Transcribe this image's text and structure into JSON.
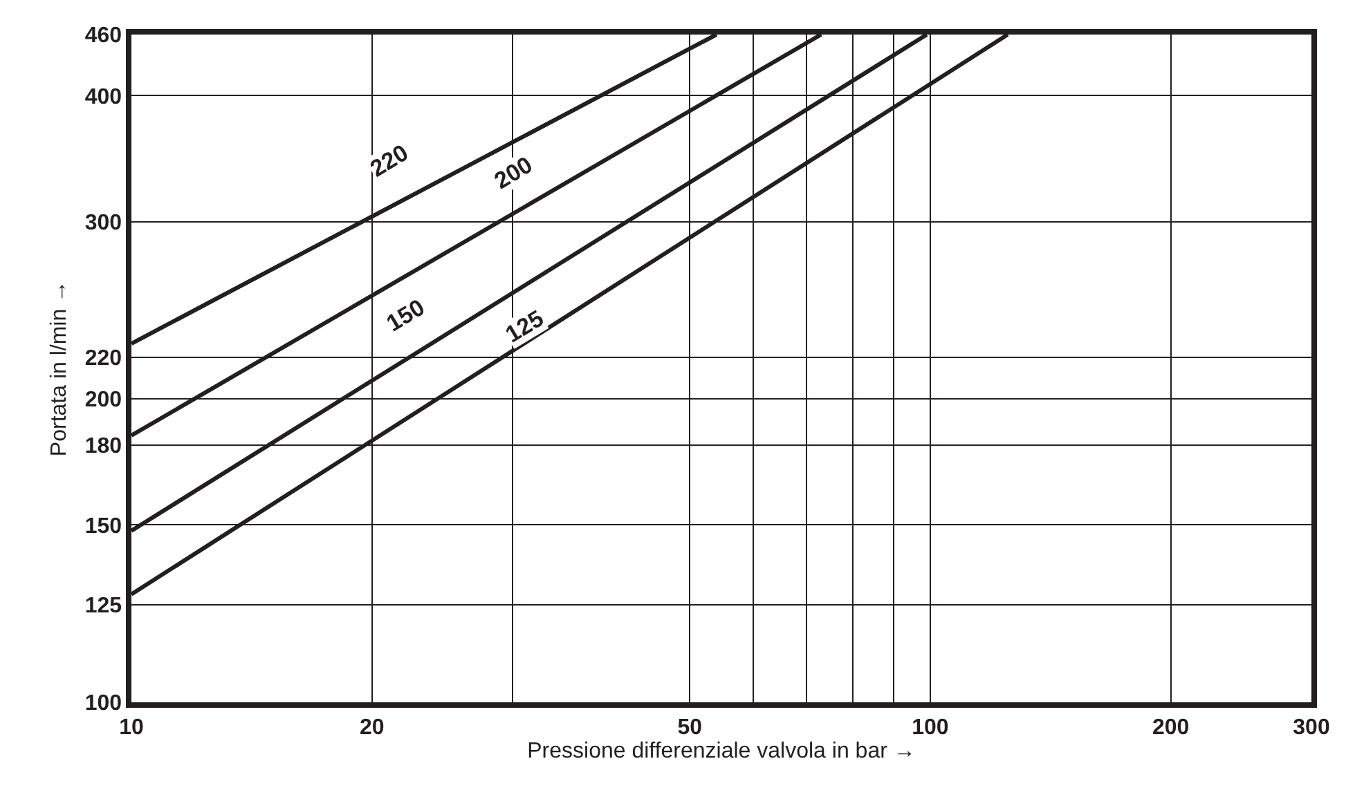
{
  "chart_data": {
    "type": "line",
    "xlabel": "Pressione differenziale valvola in bar →",
    "ylabel": "Portata in l/min →",
    "log": "xy",
    "grid": true,
    "marker": "none",
    "line_style": "solid",
    "xlim": [
      10,
      300
    ],
    "xticks": [
      10,
      20,
      {
        "value": 30,
        "label": null
      },
      50,
      {
        "value": 60,
        "label": null
      },
      {
        "value": 70,
        "label": null
      },
      {
        "value": 80,
        "label": null
      },
      {
        "value": 90,
        "label": null
      },
      100,
      200,
      300
    ],
    "ylim": [
      100,
      460
    ],
    "yticks": [
      100,
      125,
      150,
      180,
      200,
      220,
      300,
      400,
      460
    ],
    "series": [
      {
        "color": "#231f20",
        "x": [
          10,
          54
        ],
        "values": [
          227,
          460
        ]
      },
      {
        "color": "#231f20",
        "x": [
          10,
          73
        ],
        "values": [
          184,
          460
        ]
      },
      {
        "color": "#231f20",
        "x": [
          10,
          99
        ],
        "values": [
          148,
          460
        ]
      },
      {
        "color": "#231f20",
        "x": [
          10,
          125
        ],
        "values": [
          128,
          460
        ]
      }
    ],
    "annotations": [
      {
        "text": "220",
        "x": 21,
        "y": 345
      },
      {
        "text": "200",
        "x": 30,
        "y": 335
      },
      {
        "text": "150",
        "x": 22,
        "y": 242
      },
      {
        "text": "125",
        "x": 31,
        "y": 236
      }
    ]
  }
}
